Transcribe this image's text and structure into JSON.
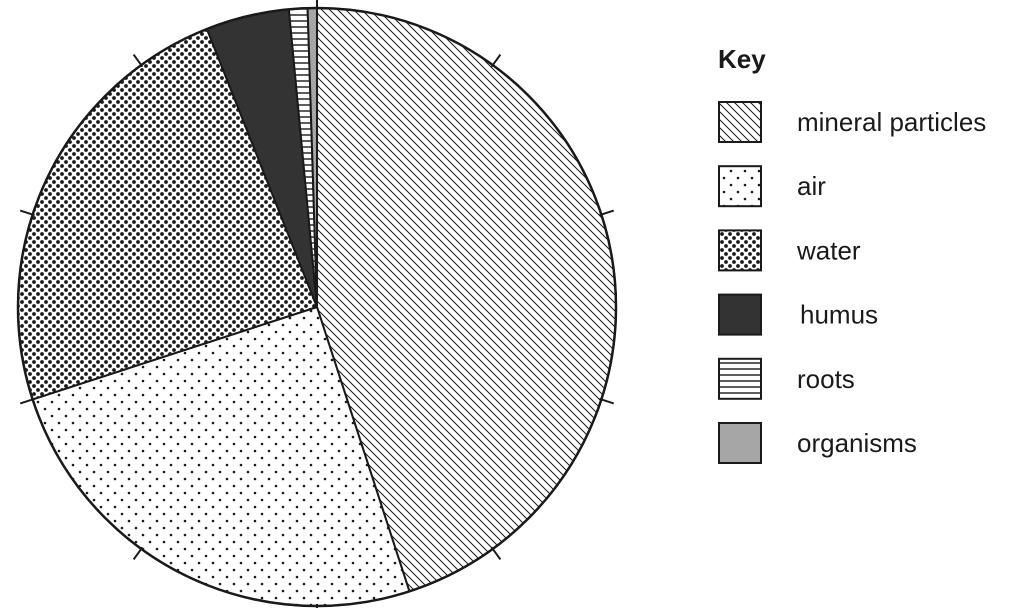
{
  "chart_data": {
    "type": "pie",
    "title": "",
    "legend_title": "Key",
    "legend_position": "right",
    "start_angle_deg": 0,
    "direction": "clockwise",
    "categories": [
      "mineral particles",
      "air",
      "water",
      "humus",
      "roots",
      "organisms"
    ],
    "values": [
      45,
      25,
      24,
      4.5,
      1,
      0.5
    ],
    "units": "%",
    "tick_marks_every_percent": 10,
    "patterns": [
      "diagonal-hatch",
      "sparse-dots",
      "dense-dots",
      "solid-dark",
      "horizontal-lines",
      "solid-grey"
    ],
    "colors": {
      "outline": "#1a1a1a",
      "humus": "#333333",
      "organisms": "#a6a6a6",
      "background": "#ffffff"
    }
  }
}
